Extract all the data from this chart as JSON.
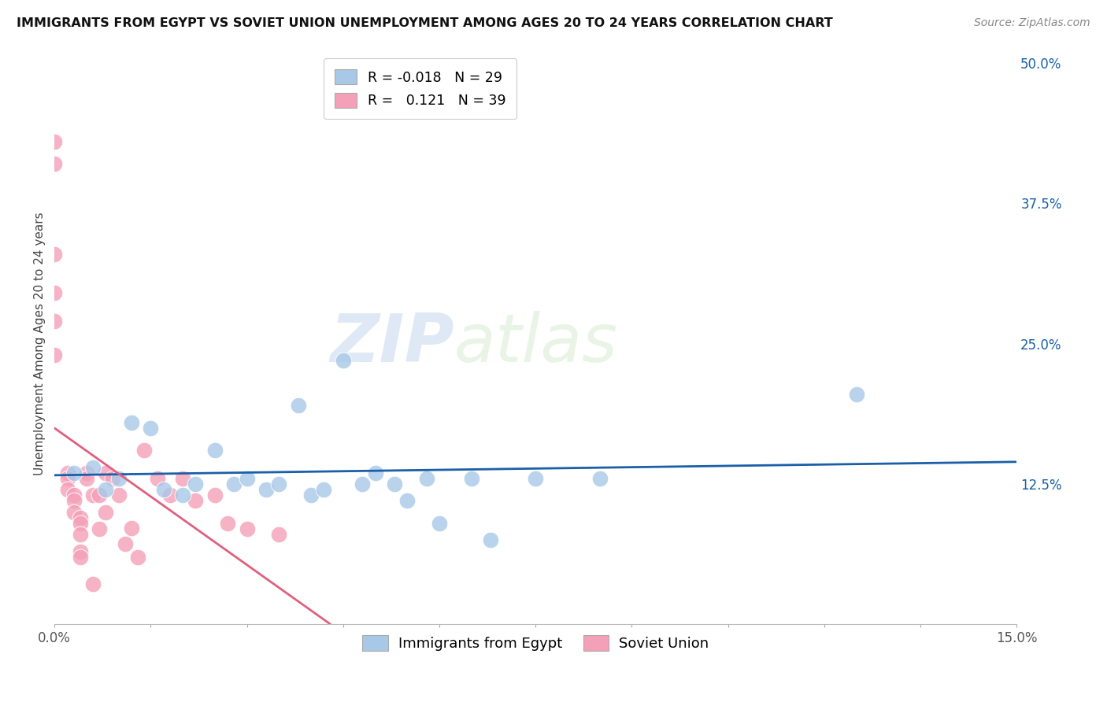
{
  "title": "IMMIGRANTS FROM EGYPT VS SOVIET UNION UNEMPLOYMENT AMONG AGES 20 TO 24 YEARS CORRELATION CHART",
  "source": "Source: ZipAtlas.com",
  "ylabel": "Unemployment Among Ages 20 to 24 years",
  "xlim": [
    0.0,
    0.15
  ],
  "ylim": [
    0.0,
    0.5
  ],
  "ytick_positions_right": [
    0.0,
    0.125,
    0.25,
    0.375,
    0.5
  ],
  "ytick_labels_right": [
    "",
    "12.5%",
    "25.0%",
    "37.5%",
    "50.0%"
  ],
  "egypt_color": "#a8c8e8",
  "soviet_color": "#f4a0b8",
  "egypt_line_color": "#1a5fa8",
  "soviet_line_color": "#e06080",
  "egypt_label": "Immigrants from Egypt",
  "soviet_label": "Soviet Union",
  "egypt_R": "-0.018",
  "egypt_N": "29",
  "soviet_R": "0.121",
  "soviet_N": "39",
  "watermark_zip": "ZIP",
  "watermark_atlas": "atlas",
  "egypt_scatter_x": [
    0.003,
    0.006,
    0.008,
    0.01,
    0.012,
    0.015,
    0.017,
    0.02,
    0.022,
    0.025,
    0.028,
    0.03,
    0.033,
    0.035,
    0.038,
    0.04,
    0.042,
    0.045,
    0.048,
    0.05,
    0.053,
    0.055,
    0.058,
    0.06,
    0.065,
    0.068,
    0.075,
    0.085,
    0.125
  ],
  "egypt_scatter_y": [
    0.135,
    0.14,
    0.12,
    0.13,
    0.18,
    0.175,
    0.12,
    0.115,
    0.125,
    0.155,
    0.125,
    0.13,
    0.12,
    0.125,
    0.195,
    0.115,
    0.12,
    0.235,
    0.125,
    0.135,
    0.125,
    0.11,
    0.13,
    0.09,
    0.13,
    0.075,
    0.13,
    0.13,
    0.205
  ],
  "soviet_scatter_x": [
    0.0,
    0.0,
    0.0,
    0.0,
    0.0,
    0.0,
    0.002,
    0.002,
    0.002,
    0.003,
    0.003,
    0.003,
    0.004,
    0.004,
    0.004,
    0.004,
    0.004,
    0.005,
    0.005,
    0.006,
    0.006,
    0.007,
    0.007,
    0.008,
    0.008,
    0.009,
    0.01,
    0.011,
    0.012,
    0.013,
    0.014,
    0.016,
    0.018,
    0.02,
    0.022,
    0.025,
    0.027,
    0.03,
    0.035
  ],
  "soviet_scatter_y": [
    0.43,
    0.41,
    0.33,
    0.295,
    0.27,
    0.24,
    0.135,
    0.13,
    0.12,
    0.115,
    0.11,
    0.1,
    0.095,
    0.09,
    0.08,
    0.065,
    0.06,
    0.135,
    0.13,
    0.115,
    0.036,
    0.115,
    0.085,
    0.135,
    0.1,
    0.13,
    0.115,
    0.072,
    0.086,
    0.06,
    0.155,
    0.13,
    0.115,
    0.13,
    0.11,
    0.115,
    0.09,
    0.085,
    0.08
  ],
  "background_color": "#ffffff",
  "grid_color": "#dddddd",
  "title_fontsize": 11.5,
  "source_fontsize": 10,
  "axis_label_fontsize": 11,
  "tick_fontsize": 12
}
